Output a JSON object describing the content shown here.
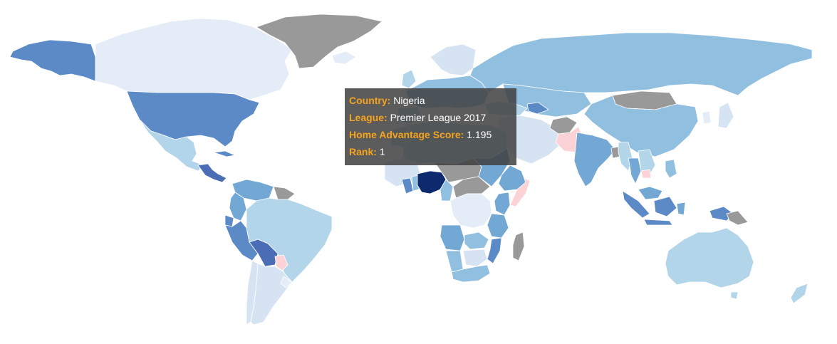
{
  "colors": {
    "nodata": "#999999",
    "c1": "#e4ecf7",
    "c2": "#d6e3f3",
    "c3": "#b3d5ea",
    "c4": "#91bfe0",
    "c5": "#73a8d5",
    "c6": "#5b8ac6",
    "c7": "#4a6db5",
    "c8": "#0d2a6e",
    "negative": "#fbd3d6",
    "tooltip_key": "#f7a31c"
  },
  "tooltip": {
    "country_label": "Country:",
    "country_value": "Nigeria",
    "league_label": "League:",
    "league_value": "Premier League 2017",
    "score_label": "Home Advantage Score:",
    "score_value": "1.195",
    "rank_label": "Rank:",
    "rank_value": "1"
  },
  "highlighted_country": "Nigeria"
}
